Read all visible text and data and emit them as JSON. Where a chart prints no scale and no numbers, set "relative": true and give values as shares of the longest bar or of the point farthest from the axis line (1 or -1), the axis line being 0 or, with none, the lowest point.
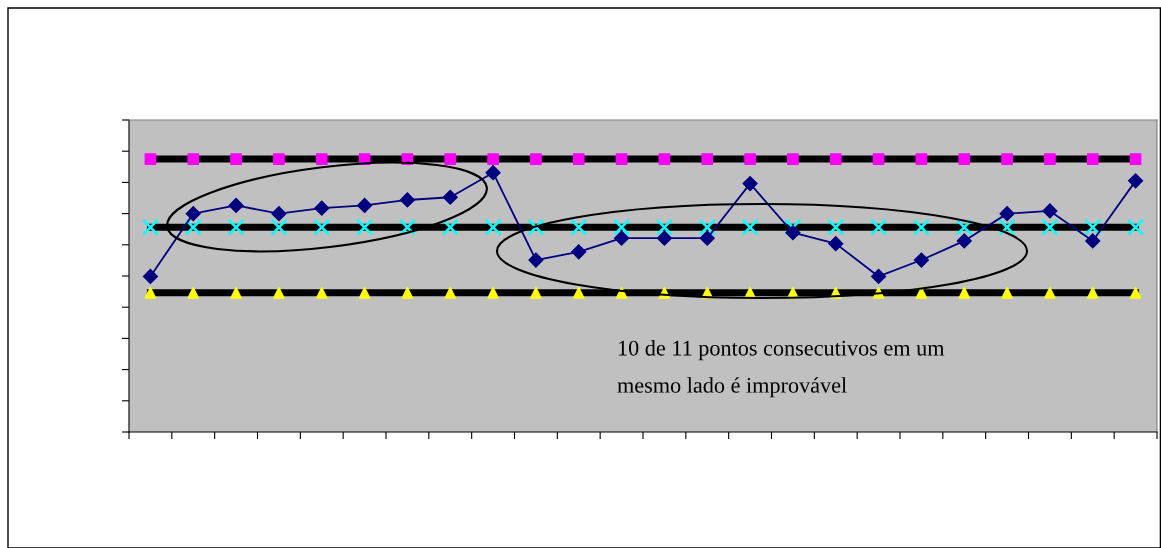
{
  "chart_data": {
    "type": "line",
    "relative": true,
    "categories": [
      null,
      null,
      null,
      null,
      null,
      null,
      null,
      null,
      null,
      null,
      null,
      null,
      null,
      null,
      null,
      null,
      null,
      null,
      null,
      null,
      null,
      null,
      null,
      null
    ],
    "series": [
      {
        "marker": "square",
        "color": "#000000",
        "colors": [
          "#ff00ff",
          "#ff00ff",
          "#ff00ff",
          "#ff00ff",
          "#ff00ff",
          "#ff00ff",
          "#ff00ff",
          "#ff00ff",
          "#ff00ff",
          "#ff00ff",
          "#ff00ff",
          "#ff00ff",
          "#ff00ff",
          "#ff00ff",
          "#ff00ff",
          "#ff00ff",
          "#ff00ff",
          "#ff00ff",
          "#ff00ff",
          "#ff00ff",
          "#ff00ff",
          "#ff00ff",
          "#ff00ff",
          "#ff00ff"
        ],
        "values": [
          1,
          1,
          1,
          1,
          1,
          1,
          1,
          1,
          1,
          1,
          1,
          1,
          1,
          1,
          1,
          1,
          1,
          1,
          1,
          1,
          1,
          1,
          1,
          1
        ]
      },
      {
        "marker": "cross",
        "color": "#000000",
        "colors": [
          "#00ffff",
          "#00ffff",
          "#00ffff",
          "#00ffff",
          "#00ffff",
          "#00ffff",
          "#00ffff",
          "#00ffff",
          "#00ffff",
          "#00ffff",
          "#00ffff",
          "#00ffff",
          "#00ffff",
          "#00ffff",
          "#00ffff",
          "#00ffff",
          "#00ffff",
          "#00ffff",
          "#00ffff",
          "#00ffff",
          "#00ffff",
          "#00ffff",
          "#00ffff",
          "#00ffff"
        ],
        "values": [
          0.75,
          0.75,
          0.75,
          0.75,
          0.75,
          0.75,
          0.75,
          0.75,
          0.75,
          0.75,
          0.75,
          0.75,
          0.75,
          0.75,
          0.75,
          0.75,
          0.75,
          0.75,
          0.75,
          0.75,
          0.75,
          0.75,
          0.75,
          0.75
        ]
      },
      {
        "marker": "triangle",
        "color": "#000000",
        "colors": [
          "#ffff00",
          "#ffff00",
          "#ffff00",
          "#ffff00",
          "#ffff00",
          "#ffff00",
          "#ffff00",
          "#ffff00",
          "#ffff00",
          "#ffff00",
          "#ffff00",
          "#ffff00",
          "#ffff00",
          "#ffff00",
          "#ffff00",
          "#ffff00",
          "#ffff00",
          "#ffff00",
          "#ffff00",
          "#ffff00",
          "#ffff00",
          "#ffff00",
          "#ffff00",
          "#ffff00"
        ],
        "values": [
          0.51,
          0.51,
          0.51,
          0.51,
          0.51,
          0.51,
          0.51,
          0.51,
          0.51,
          0.51,
          0.51,
          0.51,
          0.51,
          0.51,
          0.51,
          0.51,
          0.51,
          0.51,
          0.51,
          0.51,
          0.51,
          0.51,
          0.51,
          0.51
        ]
      },
      {
        "marker": "diamond",
        "color": "#000080",
        "values": [
          0.57,
          0.8,
          0.83,
          0.8,
          0.82,
          0.83,
          0.85,
          0.86,
          0.95,
          0.63,
          0.66,
          0.71,
          0.71,
          0.71,
          0.91,
          0.73,
          0.69,
          0.57,
          0.63,
          0.7,
          0.8,
          0.81,
          0.7,
          0.92
        ]
      }
    ],
    "annotations": [
      "10 de 11 pontos consecutivos em um\nmesmo lado é improvável"
    ],
    "grid": false,
    "legend": false
  }
}
